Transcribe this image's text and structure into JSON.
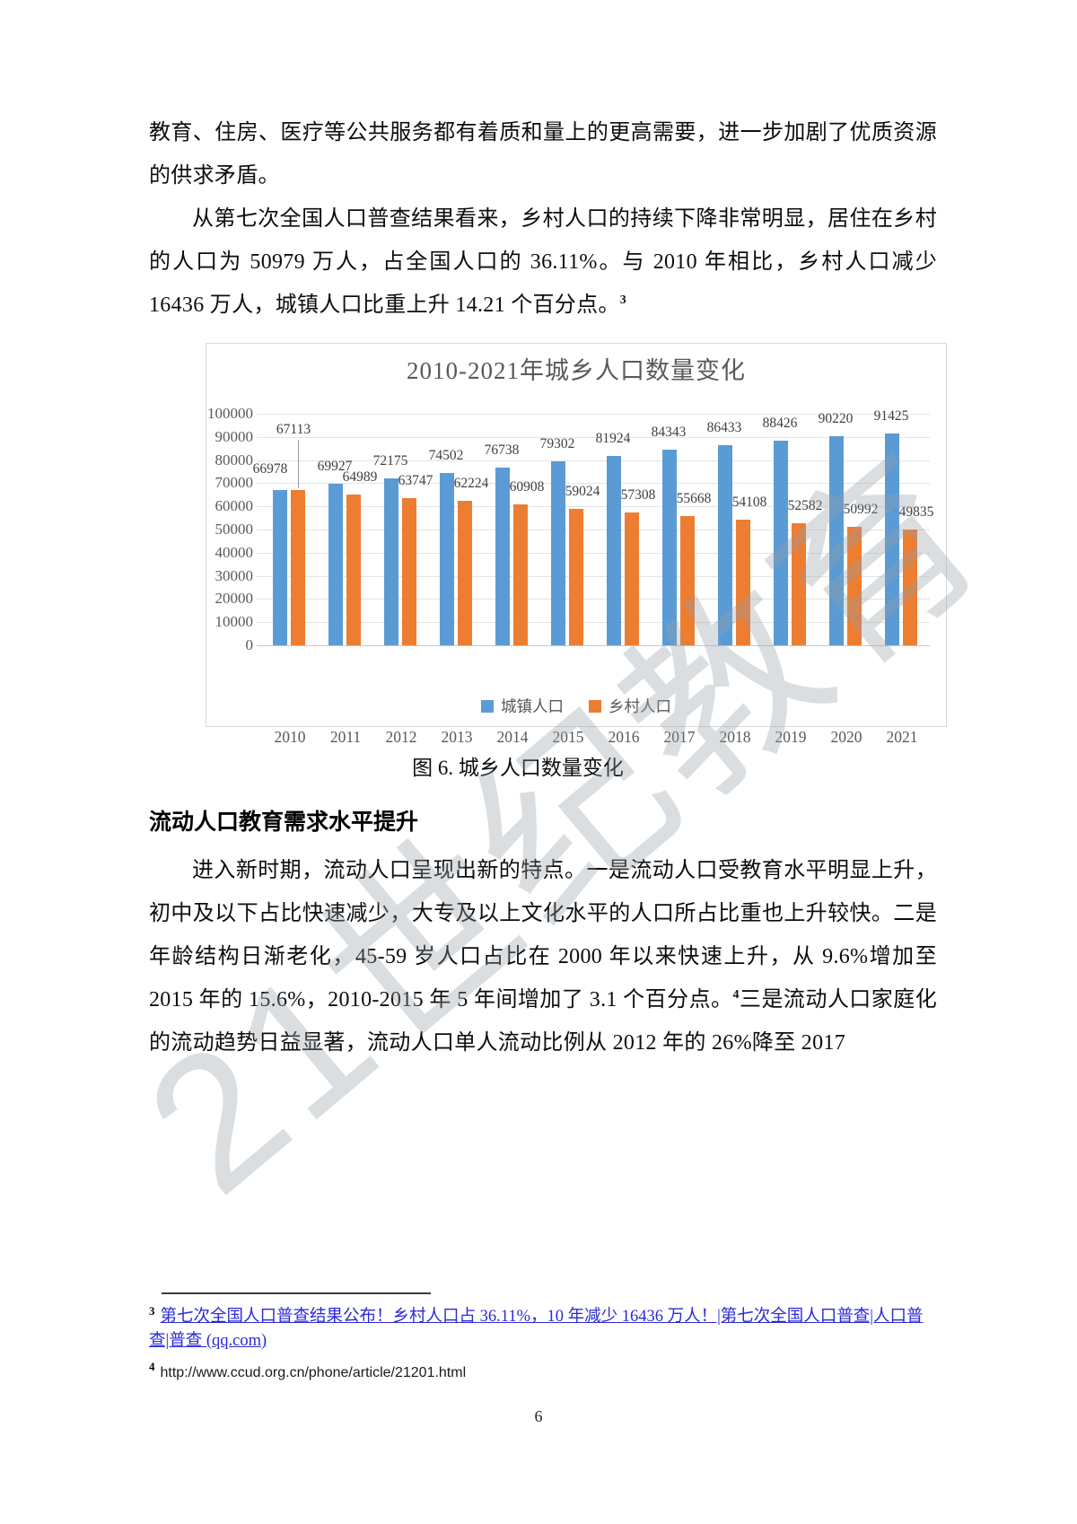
{
  "page": {
    "number": "6"
  },
  "watermark": "21世纪教育",
  "paragraphs": {
    "p1": "教育、住房、医疗等公共服务都有着质和量上的更高需要，进一步加剧了优质资源的供求矛盾。",
    "p2": "从第七次全国人口普查结果看来，乡村人口的持续下降非常明显，居住在乡村的人口为 50979 万人，占全国人口的 36.11%。与 2010 年相比，乡村人口减少 16436 万人，城镇人口比重上升 14.21 个百分点。",
    "p2_footnote_ref": "3",
    "p3_part1": "进入新时期，流动人口呈现出新的特点。一是流动人口受教育水平明显上升，初中及以下占比快速减少，大专及以上文化水平的人口所占比重也上升较快。二是年龄结构日渐老化，45-59 岁人口占比在 2000 年以来快速上升，从 9.6%增加至 2015 年的 15.6%，2010-2015 年 5 年间增加了 3.1 个百分点。",
    "p3_footnote_ref": "4",
    "p3_part2": "三是流动人口家庭化的流动趋势日益显著，流动人口单人流动比例从 2012 年的 26%降至 2017"
  },
  "heading": "流动人口教育需求水平提升",
  "figure": {
    "caption": "图 6. 城乡人口数量变化"
  },
  "chart_data": {
    "type": "bar",
    "title": "2010-2021年城乡人口数量变化",
    "categories": [
      "2010",
      "2011",
      "2012",
      "2013",
      "2014",
      "2015",
      "2016",
      "2017",
      "2018",
      "2019",
      "2020",
      "2021"
    ],
    "series": [
      {
        "name": "城镇人口",
        "color": "#5B9BD5",
        "values": [
          66978,
          69927,
          72175,
          74502,
          76738,
          79302,
          81924,
          84343,
          86433,
          88426,
          90220,
          91425
        ]
      },
      {
        "name": "乡村人口",
        "color": "#ED7D31",
        "values": [
          67113,
          64989,
          63747,
          62224,
          60908,
          59024,
          57308,
          55668,
          54108,
          52582,
          50992,
          49835
        ]
      }
    ],
    "xlabel": "",
    "ylabel": "",
    "ylim": [
      0,
      100000
    ],
    "ytick_step": 10000,
    "grid": true,
    "legend_position": "bottom",
    "data_labels": true
  },
  "footnotes": [
    {
      "marker": "3",
      "text": "第七次全国人口普查结果公布！乡村人口占 36.11%，10 年减少 16436 万人！|第七次全国人口普查|人口普查|普查 (qq.com)"
    },
    {
      "marker": "4",
      "text": "http://www.ccud.org.cn/phone/article/21201.html"
    }
  ]
}
